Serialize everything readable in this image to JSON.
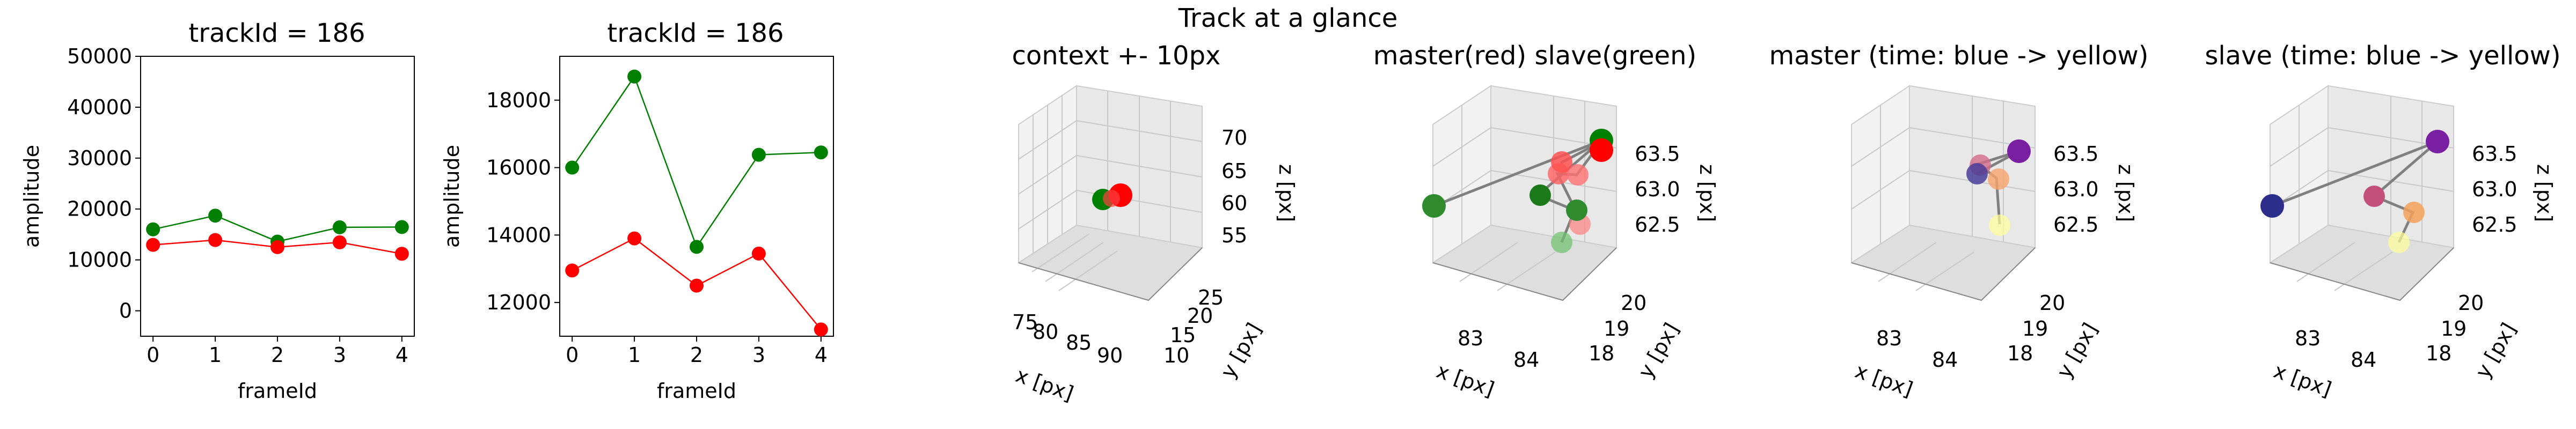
{
  "figure": {
    "suptitle": "Track at a glance"
  },
  "chart_data": [
    {
      "type": "line",
      "title": "trackId = 186",
      "xlabel": "frameId",
      "ylabel": "amplitude",
      "xlim": [
        -0.2,
        4.2
      ],
      "ylim": [
        -5000,
        50000
      ],
      "xticks": [
        0,
        1,
        2,
        3,
        4
      ],
      "yticks": [
        0,
        10000,
        20000,
        30000,
        40000,
        50000
      ],
      "x": [
        0,
        1,
        2,
        3,
        4
      ],
      "series": [
        {
          "color": "#008000",
          "values": [
            16000,
            18700,
            13600,
            16400,
            16450
          ]
        },
        {
          "color": "#ff0000",
          "values": [
            12950,
            13900,
            12500,
            13450,
            11200
          ]
        }
      ]
    },
    {
      "type": "line",
      "title": "trackId = 186",
      "xlabel": "frameId",
      "ylabel": "amplitude",
      "xlim": [
        -0.2,
        4.2
      ],
      "ylim": [
        11000,
        19300
      ],
      "xticks": [
        0,
        1,
        2,
        3,
        4
      ],
      "yticks": [
        12000,
        14000,
        16000,
        18000
      ],
      "x": [
        0,
        1,
        2,
        3,
        4
      ],
      "series": [
        {
          "color": "#008000",
          "values": [
            16000,
            18700,
            13650,
            16380,
            16450
          ]
        },
        {
          "color": "#ff0000",
          "values": [
            12950,
            13900,
            12500,
            13450,
            11200
          ]
        }
      ]
    },
    {
      "type": "scatter3d",
      "title": "context +- 10px",
      "xlabel": "x [px]",
      "ylabel": "y [px]",
      "zlabel": "z [px]",
      "xticks": [
        "75",
        "80",
        "85",
        "90"
      ],
      "yticks": [
        "10",
        "15",
        "20",
        "25"
      ],
      "zticks": [
        "55",
        "60",
        "65",
        "70"
      ]
    },
    {
      "type": "scatter3d",
      "title": "master(red) slave(green)",
      "xlabel": "x [px]",
      "ylabel": "y [px]",
      "zlabel": "z [px]",
      "xticks": [
        "83",
        "84"
      ],
      "yticks": [
        "18",
        "19",
        "20"
      ],
      "zticks": [
        "62.5",
        "63.0",
        "63.5"
      ]
    },
    {
      "type": "scatter3d",
      "title": "master (time: blue -> yellow)",
      "xlabel": "x [px]",
      "ylabel": "y [px]",
      "zlabel": "z [px]",
      "xticks": [
        "83",
        "84"
      ],
      "yticks": [
        "18",
        "19",
        "20"
      ],
      "zticks": [
        "62.5",
        "63.0",
        "63.5"
      ]
    },
    {
      "type": "scatter3d",
      "title": "slave (time: blue -> yellow)",
      "xlabel": "x [px]",
      "ylabel": "y [px]",
      "zlabel": "z [px]",
      "xticks": [
        "83",
        "84"
      ],
      "yticks": [
        "18",
        "19",
        "20"
      ],
      "zticks": [
        "62.5",
        "63.0",
        "63.5"
      ]
    }
  ]
}
